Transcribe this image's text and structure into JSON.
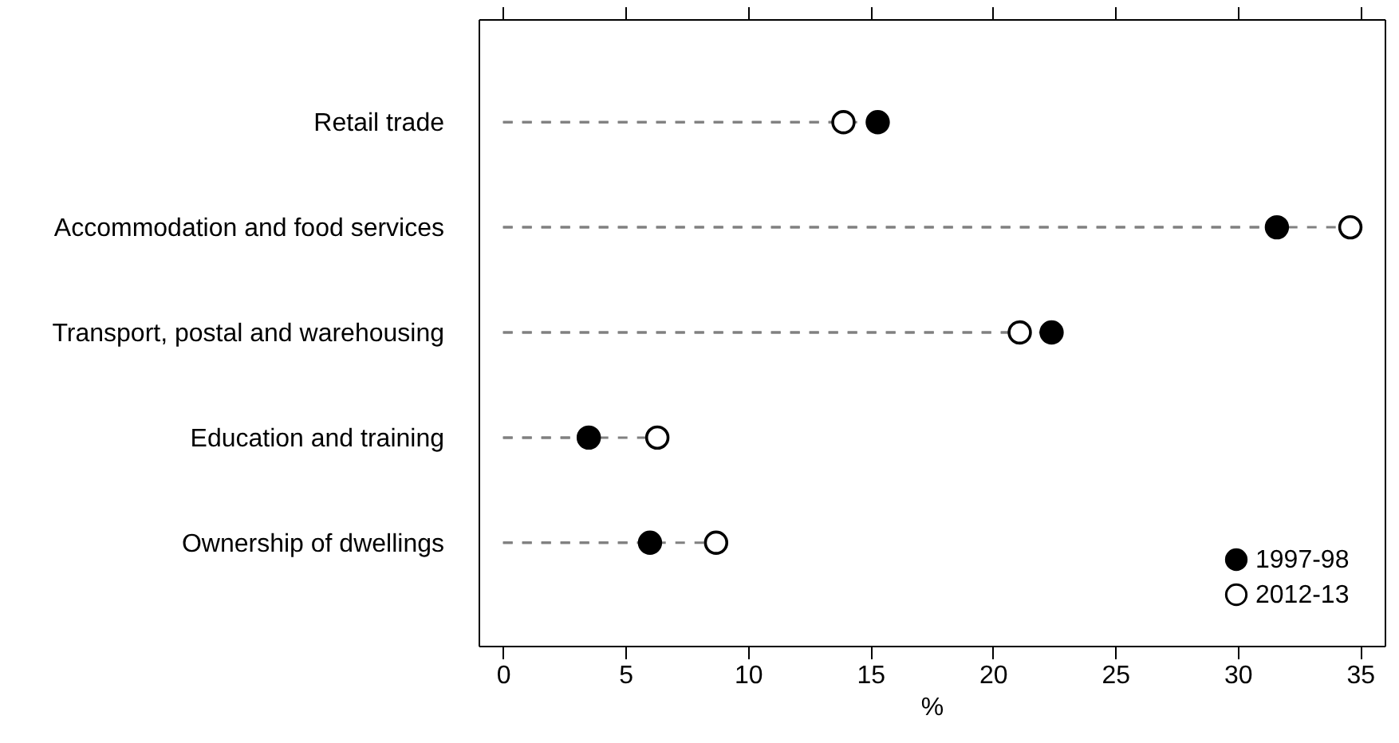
{
  "chart_data": {
    "type": "lollipop",
    "orientation": "horizontal",
    "xlabel": "%",
    "categories": [
      "Retail trade",
      "Accommodation and food services",
      "Transport, postal and warehousing",
      "Education and training",
      "Ownership of dwellings"
    ],
    "series": [
      {
        "name": "1997-98",
        "color": "#000000",
        "values": [
          15.3,
          31.6,
          22.4,
          3.5,
          6.0
        ]
      },
      {
        "name": "2012-13",
        "color": "#ffffff",
        "values": [
          13.9,
          34.6,
          21.1,
          6.3,
          8.7
        ]
      }
    ],
    "xlim": [
      -1,
      36
    ],
    "xticks": [
      0,
      5,
      10,
      15,
      20,
      25,
      30,
      35
    ],
    "grid": false,
    "legend": "bottom right",
    "marker": "circle",
    "line_style": "dashed"
  }
}
